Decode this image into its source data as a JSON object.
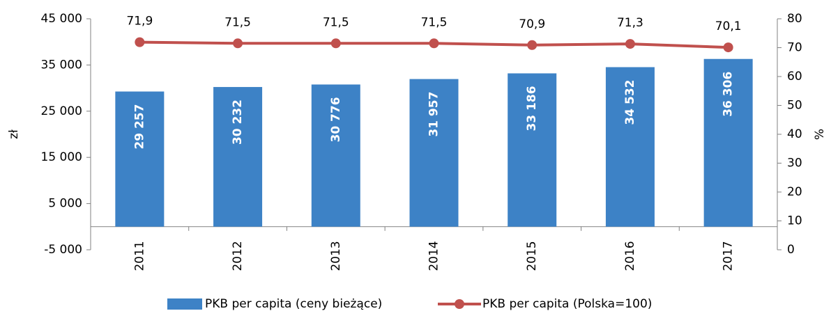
{
  "chart_data": {
    "type": "bar_line",
    "categories": [
      "2011",
      "2012",
      "2013",
      "2014",
      "2015",
      "2016",
      "2017"
    ],
    "series": [
      {
        "name": "PKB per capita (ceny bieżące)",
        "type": "bar",
        "color": "#3d82c6",
        "values": [
          29257,
          30232,
          30776,
          31957,
          33186,
          34532,
          36306
        ],
        "value_labels": [
          "29 257",
          "30 232",
          "30 776",
          "31 957",
          "33 186",
          "34 532",
          "36 306"
        ]
      },
      {
        "name": "PKB per capita (Polska=100)",
        "type": "line",
        "axis": "y2",
        "color": "#c0504d",
        "values": [
          71.9,
          71.5,
          71.5,
          71.5,
          70.9,
          71.3,
          70.1
        ],
        "value_labels": [
          "71,9",
          "71,5",
          "71,5",
          "71,5",
          "70,9",
          "71,3",
          "70,1"
        ]
      }
    ],
    "ylabel": "zł",
    "y2label": "%",
    "ylim": [
      -5000,
      45000
    ],
    "yticks": [
      {
        "value": -5000,
        "label": "-5 000"
      },
      {
        "value": 5000,
        "label": "5 000"
      },
      {
        "value": 15000,
        "label": "15 000"
      },
      {
        "value": 25000,
        "label": "25 000"
      },
      {
        "value": 35000,
        "label": "35 000"
      },
      {
        "value": 45000,
        "label": "45 000"
      }
    ],
    "y2lim": [
      0,
      80
    ],
    "y2ticks": [
      0,
      10,
      20,
      30,
      40,
      50,
      60,
      70,
      80
    ],
    "legend": "bottom"
  }
}
